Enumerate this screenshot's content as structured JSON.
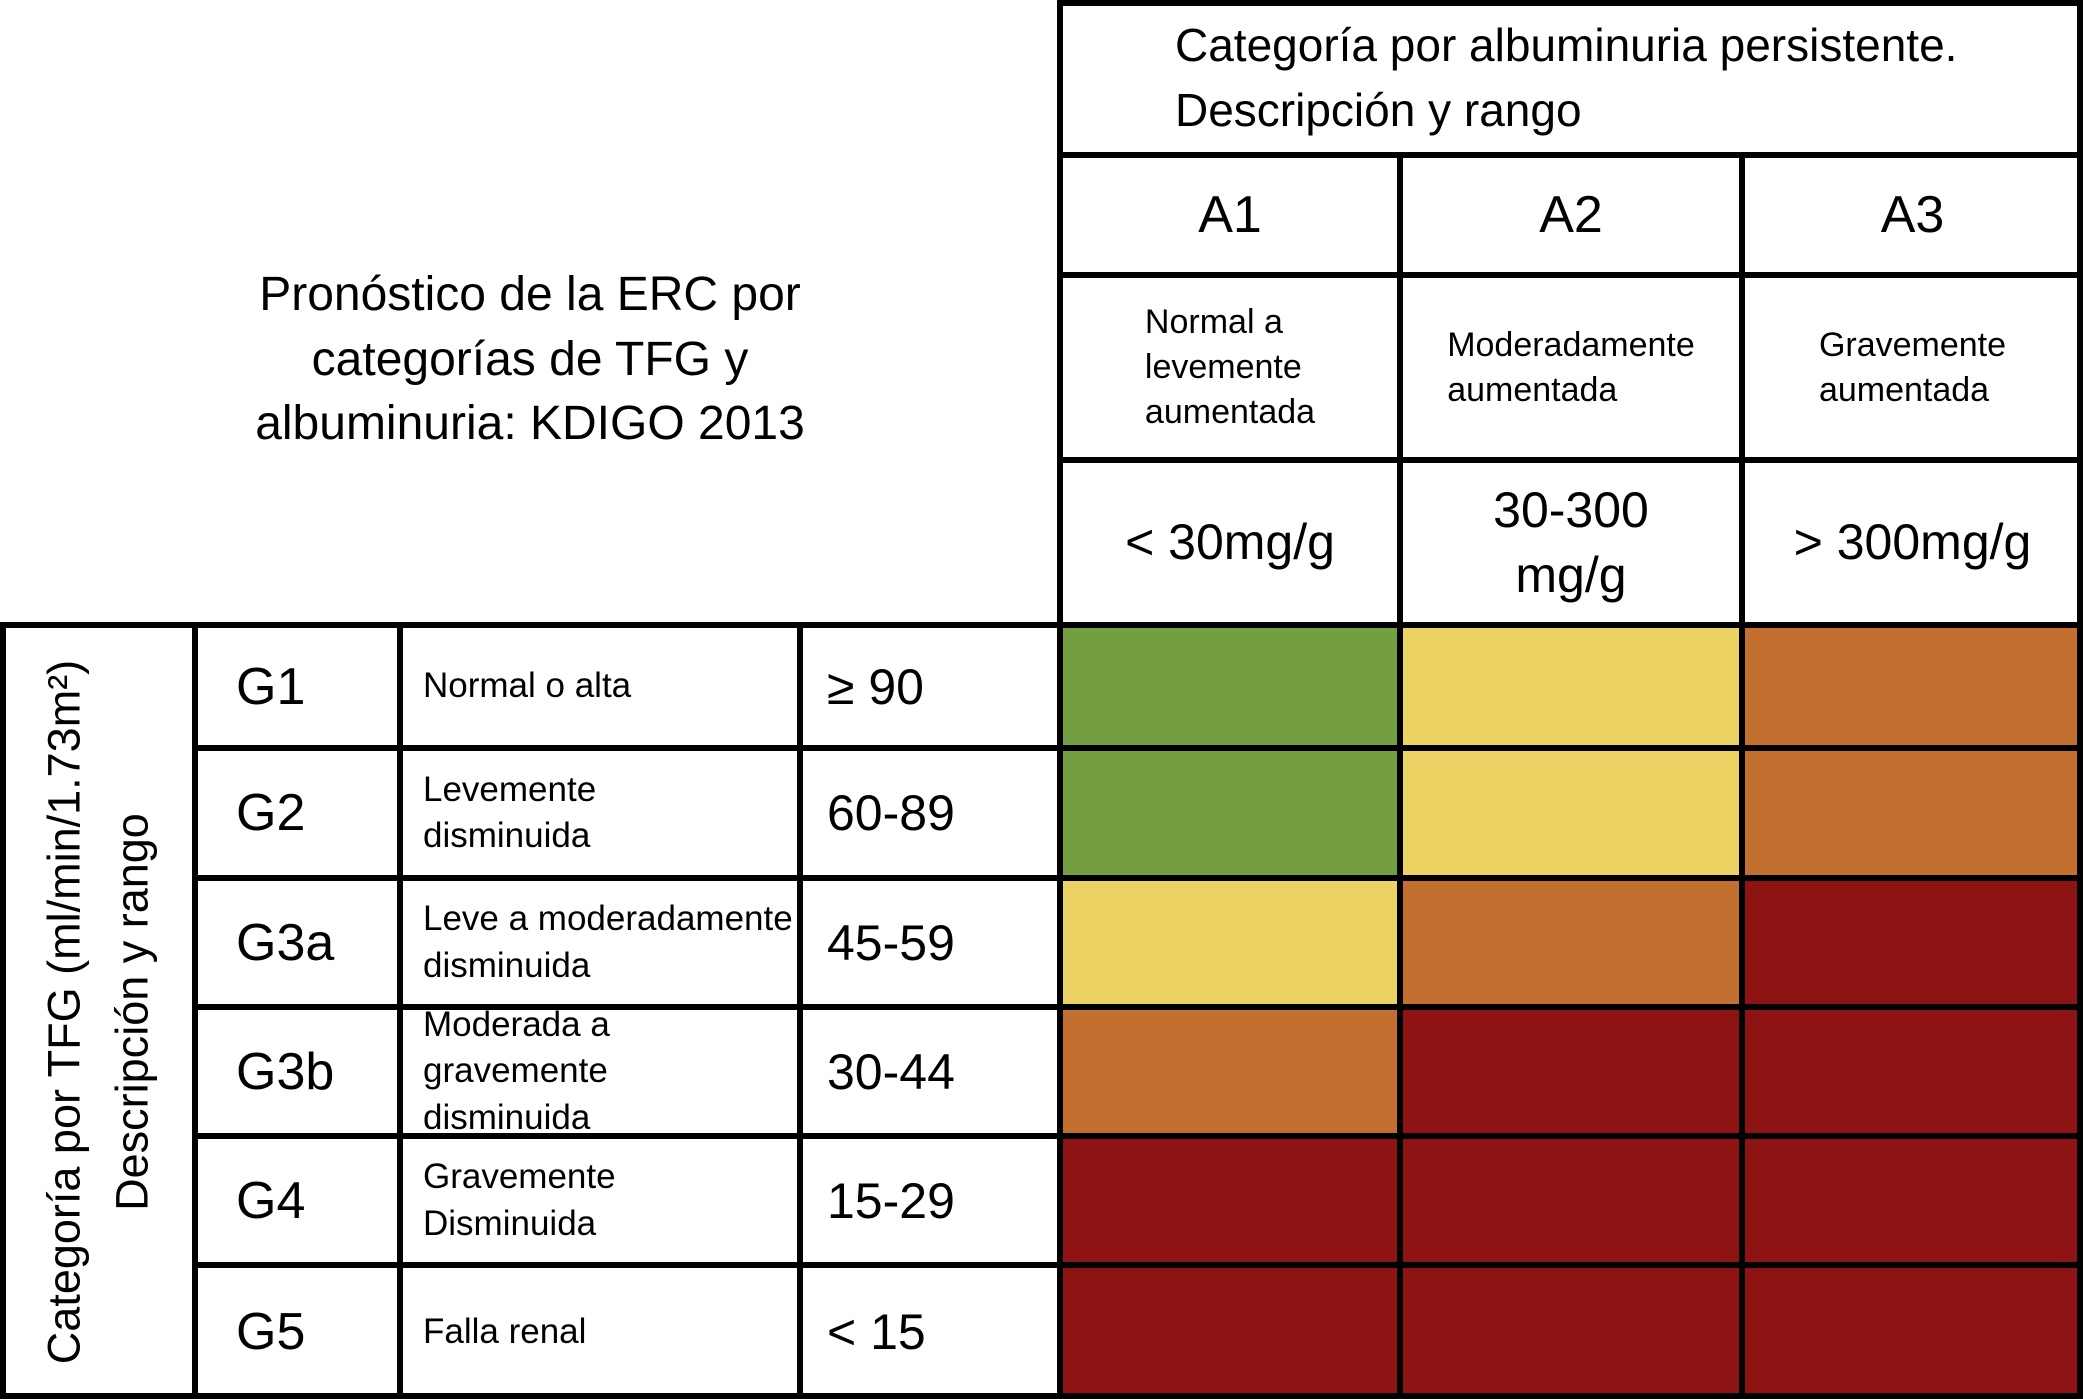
{
  "title": "Pronóstico de la ERC por\ncategorías de TFG y\nalbuminuria: KDIGO 2013",
  "albuminuria": {
    "group_title": "Categoría por albuminuria persistente.\nDescripción y rango",
    "columns": [
      {
        "code": "A1",
        "description": "Normal a\nlevemente\naumentada",
        "range": "< 30mg/g"
      },
      {
        "code": "A2",
        "description": "Moderadamente\naumentada",
        "range": "30-300\nmg/g"
      },
      {
        "code": "A3",
        "description": "Gravemente\naumentada",
        "range": "> 300mg/g"
      }
    ]
  },
  "tfg": {
    "group_title": "Categoría por TFG (ml/min/1.73m²)\nDescripción y rango"
  },
  "rows": [
    {
      "code": "G1",
      "description": "Normal o alta",
      "range": "≥ 90",
      "cells": [
        "green",
        "yellow",
        "orange"
      ]
    },
    {
      "code": "G2",
      "description": "Levemente\ndisminuida",
      "range": "60-89",
      "cells": [
        "green",
        "yellow",
        "orange"
      ]
    },
    {
      "code": "G3a",
      "description": "Leve a moderadamente\ndisminuida",
      "range": "45-59",
      "cells": [
        "yellow",
        "orange",
        "red"
      ]
    },
    {
      "code": "G3b",
      "description": "Moderada a gravemente\ndisminuida",
      "range": "30-44",
      "cells": [
        "orange",
        "red",
        "red"
      ]
    },
    {
      "code": "G4",
      "description": "Gravemente\nDisminuida",
      "range": "15-29",
      "cells": [
        "red",
        "red",
        "red"
      ]
    },
    {
      "code": "G5",
      "description": "Falla renal",
      "range": "< 15",
      "cells": [
        "red",
        "red",
        "red"
      ]
    }
  ],
  "colors": {
    "green": "#739F41",
    "yellow": "#ECD262",
    "orange": "#C36F30",
    "red": "#8E1313",
    "border": "#000000",
    "background": "#FFFFFF"
  },
  "chart_data": {
    "type": "heatmap",
    "title": "Pronóstico de la ERC por categorías de TFG y albuminuria: KDIGO 2013",
    "xlabel": "Categoría por albuminuria persistente. Descripción y rango",
    "ylabel": "Categoría por TFG (ml/min/1.73m²) Descripción y rango",
    "x_categories": [
      "A1: Normal a levemente aumentada (< 30mg/g)",
      "A2: Moderadamente aumentada (30-300 mg/g)",
      "A3: Gravemente aumentada (> 300mg/g)"
    ],
    "y_categories": [
      "G1: Normal o alta (≥ 90)",
      "G2: Levemente disminuida (60-89)",
      "G3a: Leve a moderadamente disminuida (45-59)",
      "G3b: Moderada a gravemente disminuida (30-44)",
      "G4: Gravemente Disminuida (15-29)",
      "G5: Falla renal (< 15)"
    ],
    "values": [
      [
        "green",
        "yellow",
        "orange"
      ],
      [
        "green",
        "yellow",
        "orange"
      ],
      [
        "yellow",
        "orange",
        "red"
      ],
      [
        "orange",
        "red",
        "red"
      ],
      [
        "red",
        "red",
        "red"
      ],
      [
        "red",
        "red",
        "red"
      ]
    ],
    "color_scale": {
      "green": "#739F41",
      "yellow": "#ECD262",
      "orange": "#C36F30",
      "red": "#8E1313"
    },
    "legend_position": "none",
    "grid": true
  }
}
